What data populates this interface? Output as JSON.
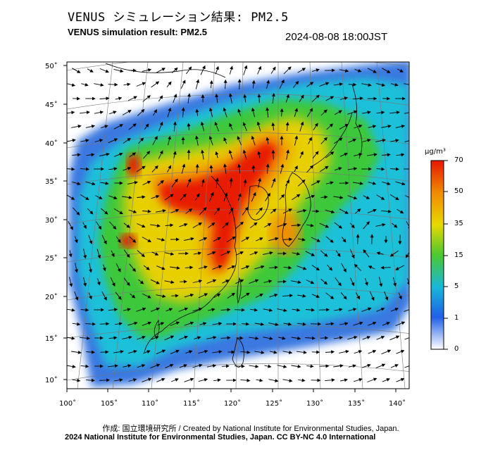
{
  "title_jp": "VENUS シミュレーション結果: PM2.5",
  "title_en": "VENUS simulation result: PM2.5",
  "timestamp": "2024-08-08 18:00JST",
  "credit_jp": "作成: 国立環境研究所 / Created by National Institute for Environmental Studies, Japan.",
  "copyright": "2024 National Institute for Environmental Studies, Japan. CC BY-NC 4.0 International",
  "colorbar": {
    "unit": "μg/m³",
    "ticks": [
      "70",
      "50",
      "35",
      "15",
      "5",
      "1",
      "0"
    ],
    "colors": [
      "#e81800",
      "#f08a00",
      "#e8d800",
      "#4cc830",
      "#18b8d8",
      "#2060e8",
      "#ffffff"
    ]
  },
  "axes": {
    "lon_labels": [
      "100˚",
      "105˚",
      "110˚",
      "115˚",
      "120˚",
      "125˚",
      "130˚",
      "135˚",
      "140˚"
    ],
    "lat_labels": [
      "50˚",
      "45˚",
      "40˚",
      "35˚",
      "30˚",
      "25˚",
      "20˚",
      "15˚",
      "10˚"
    ]
  }
}
